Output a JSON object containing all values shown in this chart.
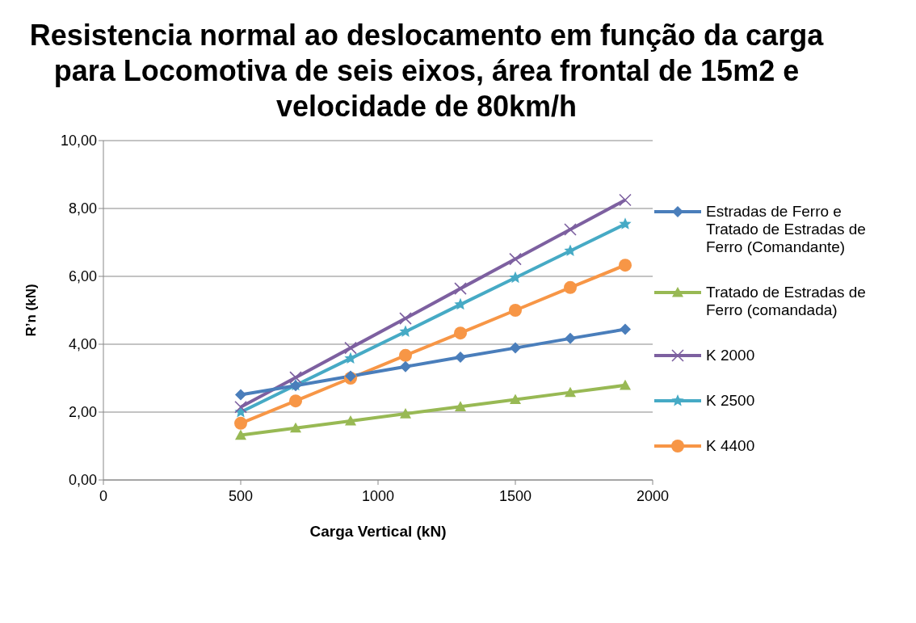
{
  "chart_data": {
    "type": "line",
    "title": "Resistencia normal ao deslocamento em função da carga para Locomotiva  de seis eixos, área frontal de 15m2 e velocidade de 80km/h",
    "xlabel": "Carga Vertical (kN)",
    "ylabel": "R’n (kN)",
    "x": [
      500,
      700,
      900,
      1100,
      1300,
      1500,
      1700,
      1900
    ],
    "series": [
      {
        "name": "Estradas de Ferro e Tratado de Estradas de Ferro (Comandante)",
        "color": "#4a7ebb",
        "marker": "diamond",
        "values": [
          2.51,
          2.78,
          3.06,
          3.34,
          3.62,
          3.89,
          4.17,
          4.44
        ]
      },
      {
        "name": "Tratado de Estradas de Ferro (comandada)",
        "color": "#98b954",
        "marker": "triangle",
        "values": [
          1.32,
          1.53,
          1.74,
          1.95,
          2.16,
          2.37,
          2.58,
          2.79
        ]
      },
      {
        "name": "K 2000",
        "color": "#7d60a0",
        "marker": "cross",
        "values": [
          2.15,
          3.02,
          3.89,
          4.76,
          5.64,
          6.51,
          7.38,
          8.25
        ]
      },
      {
        "name": "K 2500",
        "color": "#46aac5",
        "marker": "star",
        "values": [
          2.0,
          2.79,
          3.58,
          4.37,
          5.17,
          5.96,
          6.75,
          7.54
        ]
      },
      {
        "name": "K 4400",
        "color": "#f79646",
        "marker": "circle",
        "values": [
          1.67,
          2.33,
          3.0,
          3.67,
          4.33,
          5.0,
          5.67,
          6.33
        ]
      }
    ],
    "xlim": [
      0,
      2000
    ],
    "xticks": [
      0,
      500,
      1000,
      1500,
      2000
    ],
    "ylim": [
      0,
      10
    ],
    "yticks": [
      {
        "value": 0,
        "label": "0,00"
      },
      {
        "value": 2,
        "label": "2,00"
      },
      {
        "value": 4,
        "label": "4,00"
      },
      {
        "value": 6,
        "label": "6,00"
      },
      {
        "value": 8,
        "label": "8,00"
      },
      {
        "value": 10,
        "label": "10,00"
      }
    ],
    "grid": "y",
    "legend": "right",
    "line_style": "solid"
  }
}
